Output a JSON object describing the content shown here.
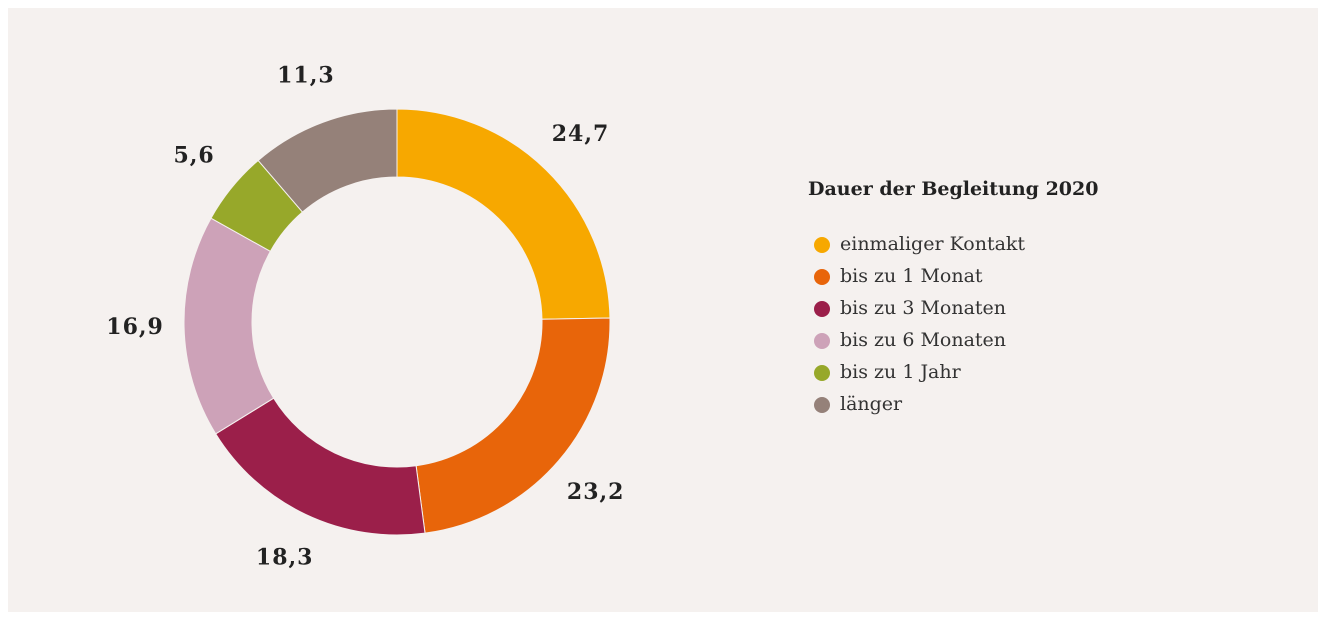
{
  "chart_data": {
    "type": "donut",
    "legend_title": "Dauer der Begleitung 2020",
    "categories": [
      "einmaliger Kontakt",
      "bis zu 1 Monat",
      "bis zu 3 Monaten",
      "bis zu 6 Monaten",
      "bis zu 1 Jahr",
      "länger"
    ],
    "values": [
      24.7,
      23.2,
      18.3,
      16.9,
      5.6,
      11.3
    ],
    "value_labels": [
      "24,7",
      "23,2",
      "18,3",
      "16,9",
      "5,6",
      "11,3"
    ],
    "colors": [
      "#f7a800",
      "#e8650a",
      "#9b1f4a",
      "#cda2b8",
      "#97a82a",
      "#958179"
    ],
    "legend": "right"
  }
}
